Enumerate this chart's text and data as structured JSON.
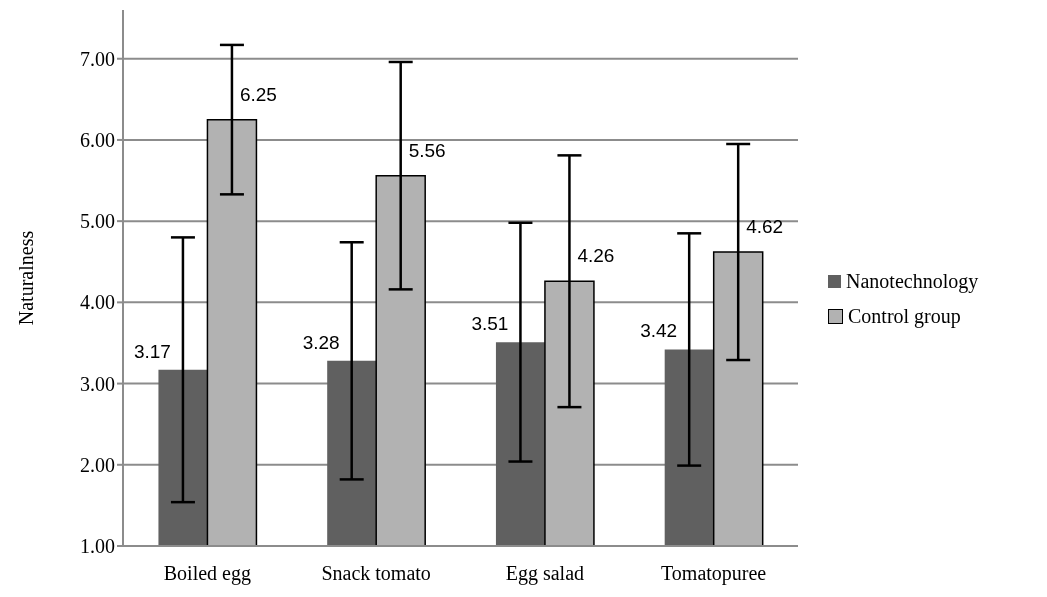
{
  "chart_data": {
    "type": "bar",
    "ylabel": "Naturalness",
    "categories": [
      "Boiled egg",
      "Snack tomato",
      "Egg salad",
      "Tomatopuree"
    ],
    "series": [
      {
        "name": "Nanotechnology",
        "color": "#606060",
        "values": [
          3.17,
          3.28,
          3.51,
          3.42
        ],
        "errors": [
          1.63,
          1.46,
          1.47,
          1.43
        ]
      },
      {
        "name": "Control group",
        "color": "#b2b2b2",
        "values": [
          6.25,
          5.56,
          4.26,
          4.62
        ],
        "errors": [
          0.92,
          1.4,
          1.55,
          1.33
        ]
      }
    ],
    "ylim": [
      1,
      7.6
    ],
    "yticks": [
      {
        "value": 1,
        "label": "1.00"
      },
      {
        "value": 2,
        "label": "2.00"
      },
      {
        "value": 3,
        "label": "3.00"
      },
      {
        "value": 4,
        "label": "4.00"
      },
      {
        "value": 5,
        "label": "5.00"
      },
      {
        "value": 6,
        "label": "6.00"
      },
      {
        "value": 7,
        "label": "7.00"
      }
    ],
    "grid": "y",
    "legend": "right",
    "data_labels": true
  }
}
